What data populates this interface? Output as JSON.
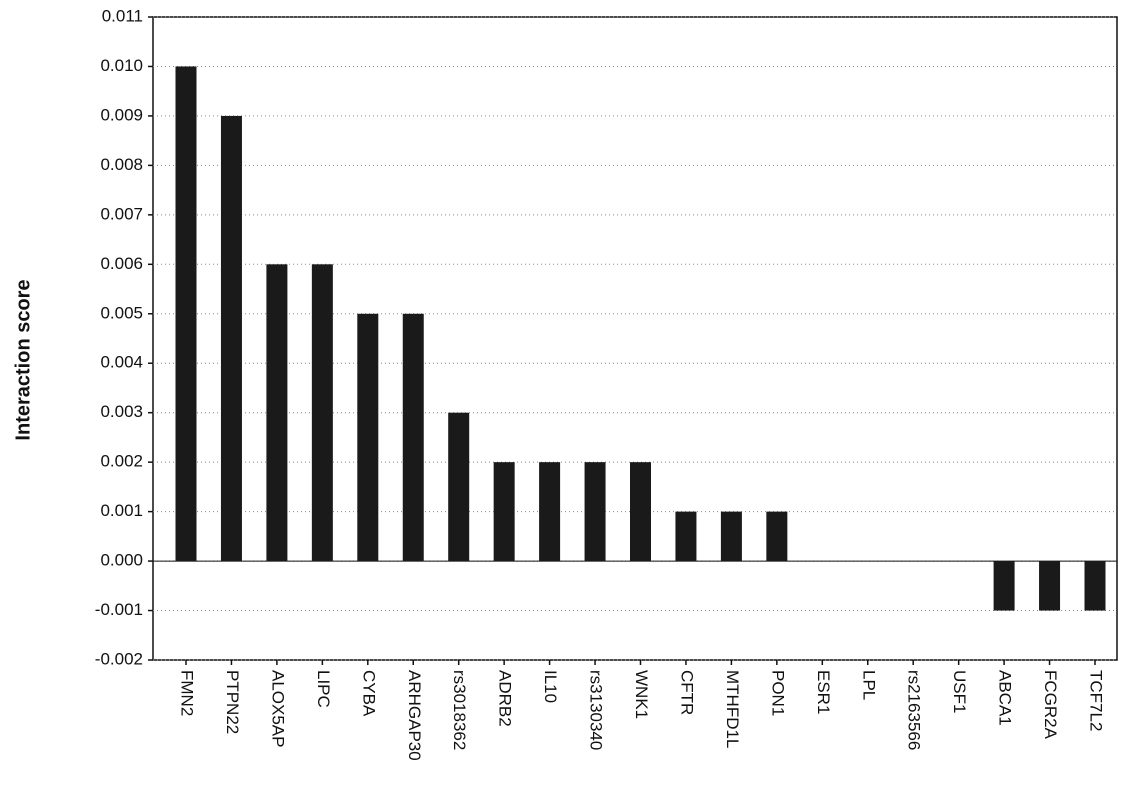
{
  "chart_data": {
    "type": "bar",
    "y_label": "Interaction score",
    "categories": [
      "FMN2",
      "PTPN22",
      "ALOX5AP",
      "LIPC",
      "CYBA",
      "ARHGAP30",
      "rs3018362",
      "ADRB2",
      "IL10",
      "rs3130340",
      "WNK1",
      "CFTR",
      "MTHFD1L",
      "PON1",
      "ESR1",
      "LPL",
      "rs2163566",
      "USF1",
      "ABCA1",
      "FCGR2A",
      "TCF7L2"
    ],
    "values": [
      0.01,
      0.009,
      0.006,
      0.006,
      0.005,
      0.005,
      0.003,
      0.002,
      0.002,
      0.002,
      0.002,
      0.001,
      0.001,
      0.001,
      0,
      0,
      0,
      0,
      -0.001,
      -0.001,
      -0.001
    ],
    "color": "#1a1a1a",
    "ylim": [
      -0.002,
      0.011
    ],
    "yticks": [
      -0.002,
      -0.001,
      {
        "value": 0,
        "label": "0.000"
      },
      0.001,
      0.002,
      0.003,
      0.004,
      0.005,
      0.006,
      0.007,
      0.008,
      0.009,
      {
        "value": 0.01,
        "label": "0.010"
      },
      0.011
    ],
    "grid": true
  }
}
